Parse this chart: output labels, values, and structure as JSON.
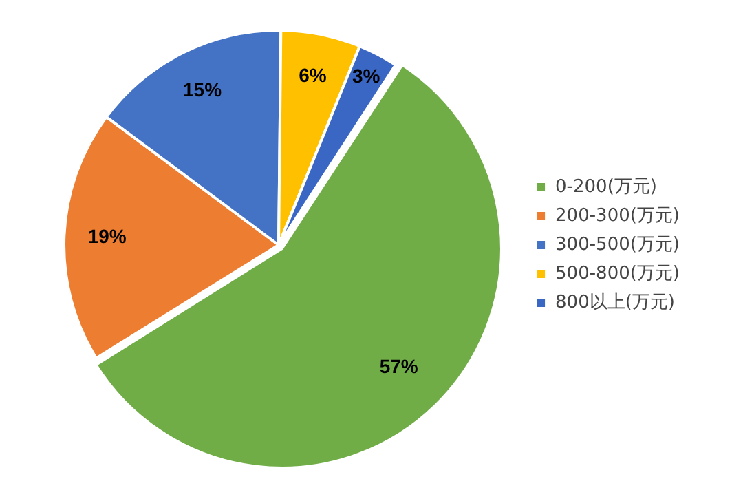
{
  "chart_data": {
    "type": "pie",
    "categories": [
      "0-200(万元)",
      "200-300(万元)",
      "300-500(万元)",
      "500-800(万元)",
      "800以上(万元)"
    ],
    "values": [
      57,
      19,
      15,
      6,
      3
    ],
    "value_labels": [
      "57%",
      "19%",
      "15%",
      "6%",
      "3%"
    ],
    "colors": [
      "#70ad47",
      "#ed7d31",
      "#4472c4",
      "#ffc000",
      "#3a66c4"
    ],
    "legend": "right"
  }
}
